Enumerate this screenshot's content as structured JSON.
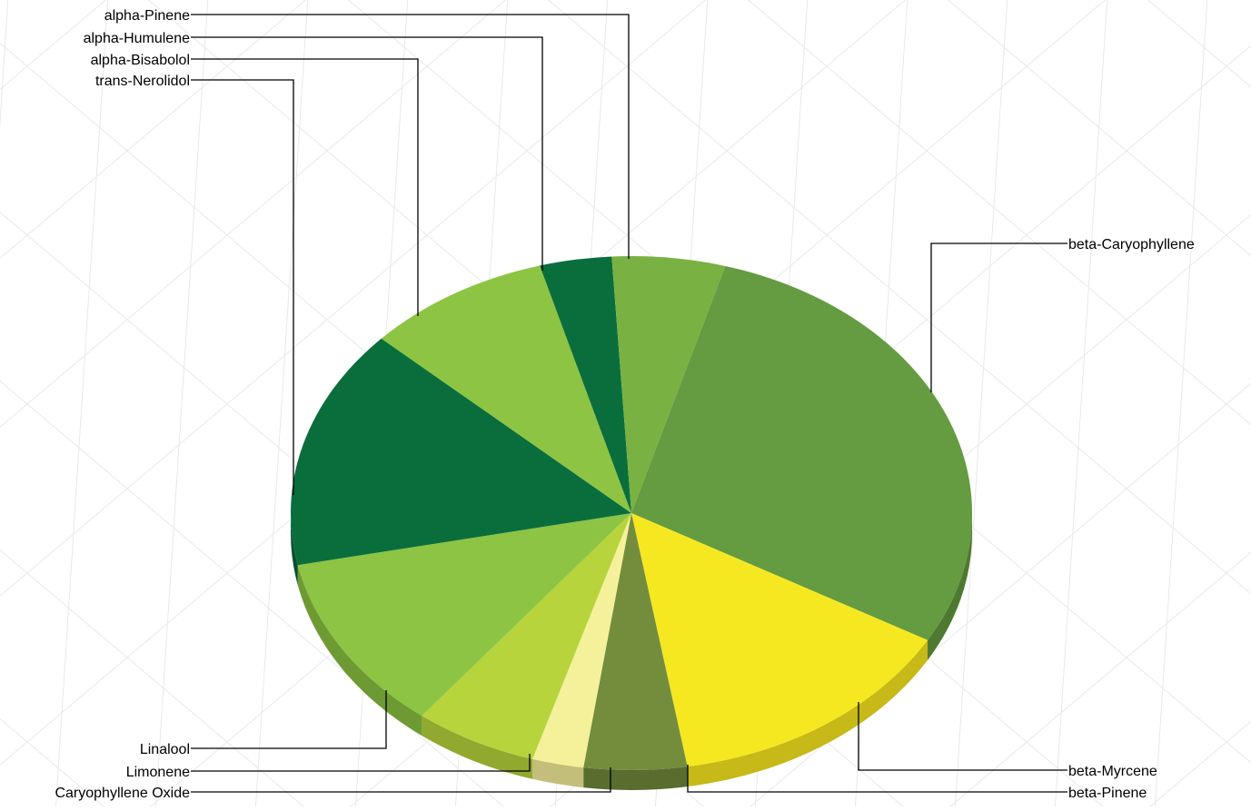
{
  "chart_data": {
    "type": "pie",
    "style": "3d-exploded-none",
    "title": "",
    "legend": "none",
    "slices": [
      {
        "label": "beta-Caryophyllene",
        "value": 29.5,
        "color": "#659b41",
        "side": "#4d7a30"
      },
      {
        "label": "beta-Myrcene",
        "value": 14.5,
        "color": "#f6e820",
        "side": "#c6b918"
      },
      {
        "label": "beta-Pinene",
        "value": 5.0,
        "color": "#738d3d",
        "side": "#586d2e"
      },
      {
        "label": "Caryophyllene Oxide",
        "value": 2.5,
        "color": "#f5f19a",
        "side": "#c3bf7a"
      },
      {
        "label": "Limonene",
        "value": 6.0,
        "color": "#b7d43c",
        "side": "#92a92f"
      },
      {
        "label": "Linalool",
        "value": 11.5,
        "color": "#8dc443",
        "side": "#6e9a33"
      },
      {
        "label": "trans-Nerolidol",
        "value": 15.5,
        "color": "#0a6e3c",
        "side": "#06512b"
      },
      {
        "label": "alpha-Bisabolol",
        "value": 9.0,
        "color": "#8dc443",
        "side": "#6e9a33"
      },
      {
        "label": "alpha-Humulene",
        "value": 3.5,
        "color": "#0a6e3c",
        "side": "#06512b"
      },
      {
        "label": "alpha-Pinene",
        "value": 5.5,
        "color": "#79b142",
        "side": "#5d8a33"
      }
    ]
  }
}
